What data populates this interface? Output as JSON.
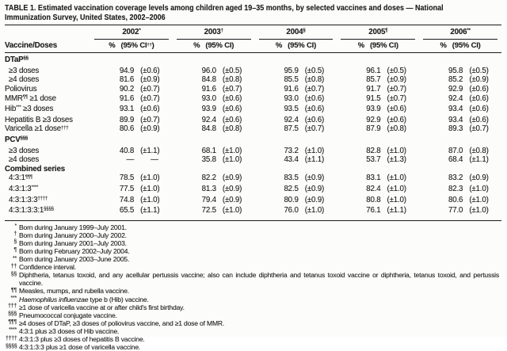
{
  "page": {
    "title_lines": [
      "TABLE 1. Estimated vaccination coverage levels among children aged 19–35 months, by selected vaccines and doses — National",
      "Immunization Survey, United States, 2002–2006"
    ]
  },
  "table": {
    "row_header": "Vaccine/Doses",
    "years": [
      {
        "label": "2002",
        "marker": "*",
        "pct_header": "%",
        "ci_header_segments": [
          {
            "t": "(95% CI"
          },
          {
            "t": "††",
            "sup": true
          },
          {
            "t": ")"
          }
        ]
      },
      {
        "label": "2003",
        "marker": "†",
        "pct_header": "%",
        "ci_header_segments": [
          {
            "t": "(95% CI)"
          }
        ]
      },
      {
        "label": "2004",
        "marker": "§",
        "pct_header": "%",
        "ci_header_segments": [
          {
            "t": "(95% CI)"
          }
        ]
      },
      {
        "label": "2005",
        "marker": "¶",
        "pct_header": "%",
        "ci_header_segments": [
          {
            "t": "(95% CI)"
          }
        ]
      },
      {
        "label": "2006",
        "marker": "**",
        "pct_header": "%",
        "ci_header_segments": [
          {
            "t": "(95% CI)"
          }
        ]
      }
    ],
    "rows": [
      {
        "type": "section",
        "segments": [
          {
            "t": "DTaP"
          },
          {
            "t": "§§",
            "sup": true
          }
        ]
      },
      {
        "type": "data",
        "indent": true,
        "segments": [
          {
            "t": "≥3 doses"
          }
        ],
        "values": [
          [
            "94.9",
            "(±0.6)"
          ],
          [
            "96.0",
            "(±0.5)"
          ],
          [
            "95.9",
            "(±0.5)"
          ],
          [
            "96.1",
            "(±0.5)"
          ],
          [
            "95.8",
            "(±0.5)"
          ]
        ]
      },
      {
        "type": "data",
        "indent": true,
        "segments": [
          {
            "t": "≥4 doses"
          }
        ],
        "values": [
          [
            "81.6",
            "(±0.9)"
          ],
          [
            "84.8",
            "(±0.8)"
          ],
          [
            "85.5",
            "(±0.8)"
          ],
          [
            "85.7",
            "(±0.9)"
          ],
          [
            "85.2",
            "(±0.9)"
          ]
        ]
      },
      {
        "type": "data",
        "segments": [
          {
            "t": "Poliovirus"
          }
        ],
        "values": [
          [
            "90.2",
            "(±0.7)"
          ],
          [
            "91.6",
            "(±0.7)"
          ],
          [
            "91.6",
            "(±0.7)"
          ],
          [
            "91.7",
            "(±0.7)"
          ],
          [
            "92.9",
            "(±0.6)"
          ]
        ]
      },
      {
        "type": "data",
        "segments": [
          {
            "t": "MMR"
          },
          {
            "t": "¶¶",
            "sup": true
          },
          {
            "t": " ≥1 dose"
          }
        ],
        "values": [
          [
            "91.6",
            "(±0.7)"
          ],
          [
            "93.0",
            "(±0.6)"
          ],
          [
            "93.0",
            "(±0.6)"
          ],
          [
            "91.5",
            "(±0.7)"
          ],
          [
            "92.4",
            "(±0.6)"
          ]
        ]
      },
      {
        "type": "data",
        "segments": [
          {
            "t": "Hib"
          },
          {
            "t": "***",
            "sup": true
          },
          {
            "t": " ≥3 doses"
          }
        ],
        "values": [
          [
            "93.1",
            "(±0.6)"
          ],
          [
            "93.9",
            "(±0.6)"
          ],
          [
            "93.5",
            "(±0.6)"
          ],
          [
            "93.9",
            "(±0.6)"
          ],
          [
            "93.4",
            "(±0.6)"
          ]
        ]
      },
      {
        "type": "data",
        "segments": [
          {
            "t": "Hepatitis B ≥3 doses"
          }
        ],
        "values": [
          [
            "89.9",
            "(±0.7)"
          ],
          [
            "92.4",
            "(±0.6)"
          ],
          [
            "92.4",
            "(±0.6)"
          ],
          [
            "92.9",
            "(±0.6)"
          ],
          [
            "93.4",
            "(±0.6)"
          ]
        ]
      },
      {
        "type": "data",
        "segments": [
          {
            "t": "Varicella ≥1 dose"
          },
          {
            "t": "†††",
            "sup": true
          }
        ],
        "values": [
          [
            "80.6",
            "(±0.9)"
          ],
          [
            "84.8",
            "(±0.8)"
          ],
          [
            "87.5",
            "(±0.7)"
          ],
          [
            "87.9",
            "(±0.8)"
          ],
          [
            "89.3",
            "(±0.7)"
          ]
        ]
      },
      {
        "type": "section",
        "segments": [
          {
            "t": "PCV"
          },
          {
            "t": "§§§",
            "sup": true
          }
        ]
      },
      {
        "type": "data",
        "indent": true,
        "segments": [
          {
            "t": "≥3 doses"
          }
        ],
        "values": [
          [
            "40.8",
            "(±1.1)"
          ],
          [
            "68.1",
            "(±1.0)"
          ],
          [
            "73.2",
            "(±1.0)"
          ],
          [
            "82.8",
            "(±1.0)"
          ],
          [
            "87.0",
            "(±0.8)"
          ]
        ]
      },
      {
        "type": "data",
        "indent": true,
        "segments": [
          {
            "t": "≥4 doses"
          }
        ],
        "values": [
          [
            "—",
            "—"
          ],
          [
            "35.8",
            "(±1.0)"
          ],
          [
            "43.4",
            "(±1.1)"
          ],
          [
            "53.7",
            "(±1.3)"
          ],
          [
            "68.4",
            "(±1.1)"
          ]
        ]
      },
      {
        "type": "section",
        "segments": [
          {
            "t": "Combined series"
          }
        ]
      },
      {
        "type": "data",
        "indent": true,
        "segments": [
          {
            "t": "4:3:1"
          },
          {
            "t": "¶¶¶",
            "sup": true
          }
        ],
        "values": [
          [
            "78.5",
            "(±1.0)"
          ],
          [
            "82.2",
            "(±0.9)"
          ],
          [
            "83.5",
            "(±0.9)"
          ],
          [
            "83.1",
            "(±1.0)"
          ],
          [
            "83.2",
            "(±0.9)"
          ]
        ]
      },
      {
        "type": "data",
        "indent": true,
        "segments": [
          {
            "t": "4:3:1:3"
          },
          {
            "t": "****",
            "sup": true
          }
        ],
        "values": [
          [
            "77.5",
            "(±1.0)"
          ],
          [
            "81.3",
            "(±0.9)"
          ],
          [
            "82.5",
            "(±0.9)"
          ],
          [
            "82.4",
            "(±1.0)"
          ],
          [
            "82.3",
            "(±1.0)"
          ]
        ]
      },
      {
        "type": "data",
        "indent": true,
        "segments": [
          {
            "t": "4:3:1:3:3"
          },
          {
            "t": "††††",
            "sup": true
          }
        ],
        "values": [
          [
            "74.8",
            "(±1.0)"
          ],
          [
            "79.4",
            "(±0.9)"
          ],
          [
            "80.9",
            "(±0.9)"
          ],
          [
            "80.8",
            "(±1.0)"
          ],
          [
            "80.6",
            "(±1.0)"
          ]
        ]
      },
      {
        "type": "data",
        "indent": true,
        "segments": [
          {
            "t": "4:3:1:3:3:1"
          },
          {
            "t": "§§§§",
            "sup": true
          }
        ],
        "values": [
          [
            "65.5",
            "(±1.1)"
          ],
          [
            "72.5",
            "(±1.0)"
          ],
          [
            "76.0",
            "(±1.0)"
          ],
          [
            "76.1",
            "(±1.1)"
          ],
          [
            "77.0",
            "(±1.0)"
          ]
        ]
      }
    ]
  },
  "footnotes": [
    {
      "sym": "*",
      "segments": [
        {
          "t": "Born during January 1999–July 2001."
        }
      ]
    },
    {
      "sym": "†",
      "segments": [
        {
          "t": "Born during January 2000–July 2002."
        }
      ]
    },
    {
      "sym": "§",
      "segments": [
        {
          "t": "Born during January 2001–July 2003."
        }
      ]
    },
    {
      "sym": "¶",
      "segments": [
        {
          "t": "Born during February 2002–July 2004."
        }
      ]
    },
    {
      "sym": "**",
      "segments": [
        {
          "t": "Born during January 2003–June 2005."
        }
      ]
    },
    {
      "sym": "††",
      "segments": [
        {
          "t": "Confidence interval."
        }
      ]
    },
    {
      "sym": "§§",
      "segments": [
        {
          "t": "Diphtheria, tetanus toxoid, and any acellular pertussis vaccine; also can include diphtheria and tetanus toxoid vaccine or diphtheria, tetanus toxoid, and pertussis vaccine."
        }
      ]
    },
    {
      "sym": "¶¶",
      "segments": [
        {
          "t": "Measles, mumps, and rubella vaccine."
        }
      ]
    },
    {
      "sym": "***",
      "segments": [
        {
          "t": "Haemophilus influenzae",
          "i": true
        },
        {
          "t": " type b (Hib) vaccine."
        }
      ]
    },
    {
      "sym": "†††",
      "segments": [
        {
          "t": "≥1 dose of varicella vaccine at or after child's first birthday."
        }
      ]
    },
    {
      "sym": "§§§",
      "segments": [
        {
          "t": "Pneumococcal conjugate vaccine."
        }
      ]
    },
    {
      "sym": "¶¶¶",
      "segments": [
        {
          "t": "≥4 doses of DTaP, ≥3 doses of poliovirus vaccine, and ≥1 dose of MMR."
        }
      ]
    },
    {
      "sym": "****",
      "segments": [
        {
          "t": "4:3:1 plus ≥3 doses of Hib vaccine."
        }
      ]
    },
    {
      "sym": "††††",
      "segments": [
        {
          "t": "4:3:1:3 plus ≥3 doses of hepatitis B vaccine."
        }
      ]
    },
    {
      "sym": "§§§§",
      "segments": [
        {
          "t": "4:3:1:3:3 plus ≥1 dose of varicella vaccine."
        }
      ]
    }
  ]
}
